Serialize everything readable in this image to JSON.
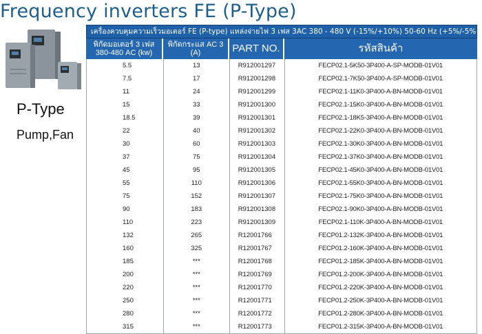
{
  "title": "Frequency inverters FE (P-Type)",
  "side": {
    "type_label": "P-Type",
    "use_label": "Pump,Fan"
  },
  "table": {
    "banner": "เครื่องควบคุมความเร็วมอเตอร์ FE (P-type) แหล่งจ่ายไฟ 3 เฟส 3AC 380 - 480 V (-15%/+10%) 50-60 Hz (+5%/-5%)",
    "headers": {
      "power": "พิกัดมอเตอร์ 3 เฟส 380-480 AC (kw)",
      "current": "พิกัดกระแส AC 3 (A)",
      "part_no": "PART NO.",
      "code": "รหัสสินค้า"
    },
    "rows": [
      {
        "power": "5.5",
        "current": "13",
        "part": "R912001297",
        "code": "FECP02.1-5K50-3P400-A-SP-MODB-01V01"
      },
      {
        "power": "7.5",
        "current": "17",
        "part": "R912001298",
        "code": "FECP02.1-7K50-3P400-A-SP-MODB-01V01"
      },
      {
        "power": "11",
        "current": "24",
        "part": "R912001299",
        "code": "FECP02.1-11K0-3P400-A-BN-MODB-01V01"
      },
      {
        "power": "15",
        "current": "33",
        "part": "R912001300",
        "code": "FECP02.1-15K0-3P400-A-BN-MODB-01V01"
      },
      {
        "power": "18.5",
        "current": "39",
        "part": "R912001301",
        "code": "FECP02.1-18K5-3P400-A-BN-MODB-01V01"
      },
      {
        "power": "22",
        "current": "40",
        "part": "R912001302",
        "code": "FECP02.1-22K0-3P400-A-BN-MODB-01V01"
      },
      {
        "power": "30",
        "current": "60",
        "part": "R912001303",
        "code": "FECP02.1-30K0-3P400-A-BN-MODB-01V01"
      },
      {
        "power": "37",
        "current": "75",
        "part": "R912001304",
        "code": "FECP02.1-37K0-3P400-A-BN-MODB-01V01"
      },
      {
        "power": "45",
        "current": "95",
        "part": "R912001305",
        "code": "FECP02.1-45K0-3P400-A-BN-MODB-01V01"
      },
      {
        "power": "55",
        "current": "110",
        "part": "R912001306",
        "code": "FECP02.1-55K0-3P400-A-BN-MODB-01V01"
      },
      {
        "power": "75",
        "current": "152",
        "part": "R912001307",
        "code": "FECP02.1-75K0-3P400-A-BN-MODB-01V01"
      },
      {
        "power": "90",
        "current": "183",
        "part": "R912001308",
        "code": "FECP02.1-90K0-3P400-A-BN-MODB-01V01"
      },
      {
        "power": "110",
        "current": "223",
        "part": "R912001309",
        "code": "FECP02.1-110K-3P400-A-BN-MODB-01V01"
      },
      {
        "power": "132",
        "current": "265",
        "part": "R12001766",
        "code": "FECP01.2-132K-3P400-A-BN-MODB-01V01"
      },
      {
        "power": "160",
        "current": "325",
        "part": "R12001767",
        "code": "FECP01.2-160K-3P400-A-BN-MODB-01V01"
      },
      {
        "power": "185",
        "current": "***",
        "part": "R12001768",
        "code": "FECP01.2-185K-3P400-A-BN-MODB-01V01"
      },
      {
        "power": "200",
        "current": "***",
        "part": "R12001769",
        "code": "FECP01.2-200K-3P400-A-BN-MODB-01V01"
      },
      {
        "power": "220",
        "current": "***",
        "part": "R12001770",
        "code": "FECP01.2-220K-3P400-A-BN-MODB-01V01"
      },
      {
        "power": "250",
        "current": "***",
        "part": "R12001771",
        "code": "FECP01.2-250K-3P400-A-BN-MODB-01V01"
      },
      {
        "power": "280",
        "current": "***",
        "part": "R12001772",
        "code": "FECP01.2-280K-3P400-A-BN-MODB-01V01"
      },
      {
        "power": "315",
        "current": "***",
        "part": "R12001773",
        "code": "FECP01.2-315K-3P400-A-BN-MODB-01V01"
      }
    ]
  }
}
